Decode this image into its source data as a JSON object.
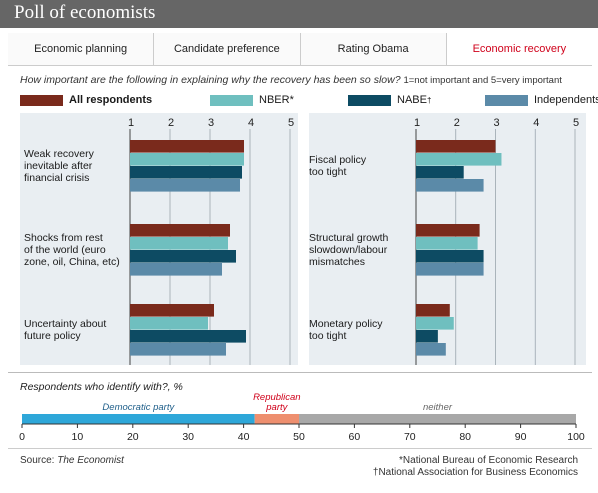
{
  "header": {
    "title": "Poll of economists"
  },
  "tabs": [
    {
      "label": "Economic planning",
      "active": false
    },
    {
      "label": "Candidate preference",
      "active": false
    },
    {
      "label": "Rating Obama",
      "active": false
    },
    {
      "label": "Economic recovery",
      "active": true
    }
  ],
  "question": {
    "text": "How important are the following in explaining why the recovery has been so slow?",
    "scale_note": "1=not important and 5=very important"
  },
  "legend": [
    {
      "name": "All respondents",
      "color": "#7a2a1c",
      "mark": ""
    },
    {
      "name": "NBER",
      "color": "#6fbfbf",
      "mark": "*"
    },
    {
      "name": "NABE",
      "color": "#0d4b63",
      "mark": "†"
    },
    {
      "name": "Independents",
      "color": "#5b8aa8",
      "mark": ""
    }
  ],
  "colors": {
    "title_bar": "#666666",
    "active_tab": "#d0021b",
    "democratic": "#2ea7d9",
    "republican": "#ee8f6f",
    "neither": "#a8a8a8"
  },
  "chart_data": [
    {
      "type": "bar",
      "orientation": "horizontal",
      "xlim": [
        1,
        5
      ],
      "ticks": [
        "1",
        "2",
        "3",
        "4",
        "5"
      ],
      "grid": true,
      "categories": [
        "Weak recovery inevitable after financial crisis",
        "Shocks from rest of the world (euro zone, oil, China, etc)",
        "Uncertainty about future policy"
      ],
      "category_lines": [
        [
          "Weak recovery",
          "inevitable after",
          "financial crisis"
        ],
        [
          "Shocks from rest",
          "of the world (euro",
          "zone, oil, China, etc)"
        ],
        [
          "Uncertainty about",
          "future policy"
        ]
      ],
      "series": [
        {
          "name": "All respondents",
          "values": [
            3.85,
            3.5,
            3.1
          ]
        },
        {
          "name": "NBER",
          "values": [
            3.85,
            3.45,
            2.95
          ]
        },
        {
          "name": "NABE",
          "values": [
            3.8,
            3.65,
            3.9
          ]
        },
        {
          "name": "Independents",
          "values": [
            3.75,
            3.3,
            3.4
          ]
        }
      ]
    },
    {
      "type": "bar",
      "orientation": "horizontal",
      "xlim": [
        1,
        5
      ],
      "ticks": [
        "1",
        "2",
        "3",
        "4",
        "5"
      ],
      "grid": true,
      "categories": [
        "Fiscal policy too tight",
        "Structural growth slowdown/labour mismatches",
        "Monetary policy too tight"
      ],
      "category_lines": [
        [
          "Fiscal policy",
          "too tight"
        ],
        [
          "Structural growth",
          "slowdown/labour",
          "mismatches"
        ],
        [
          "Monetary policy",
          "too tight"
        ]
      ],
      "series": [
        {
          "name": "All respondents",
          "values": [
            3.0,
            2.6,
            1.85
          ]
        },
        {
          "name": "NBER",
          "values": [
            3.15,
            2.55,
            1.95
          ]
        },
        {
          "name": "NABE",
          "values": [
            2.2,
            2.7,
            1.55
          ]
        },
        {
          "name": "Independents",
          "values": [
            2.7,
            2.7,
            1.75
          ]
        }
      ]
    },
    {
      "type": "bar",
      "orientation": "horizontal-stacked",
      "title": "Respondents who identify with?, %",
      "xlim": [
        0,
        100
      ],
      "ticks": [
        "0",
        "10",
        "20",
        "30",
        "40",
        "50",
        "60",
        "70",
        "80",
        "90",
        "100"
      ],
      "segments": [
        {
          "name": "Democratic party",
          "label_lines": [
            "Democratic party"
          ],
          "value": 42
        },
        {
          "name": "Republican party",
          "label_lines": [
            "Republican",
            "party"
          ],
          "value": 8
        },
        {
          "name": "neither",
          "label_lines": [
            "neither"
          ],
          "value": 50
        }
      ]
    }
  ],
  "footer": {
    "source_label": "Source: ",
    "source_name": "The Economist",
    "notes": [
      "*National Bureau of Economic Research",
      "†National Association for Business Economics"
    ]
  }
}
